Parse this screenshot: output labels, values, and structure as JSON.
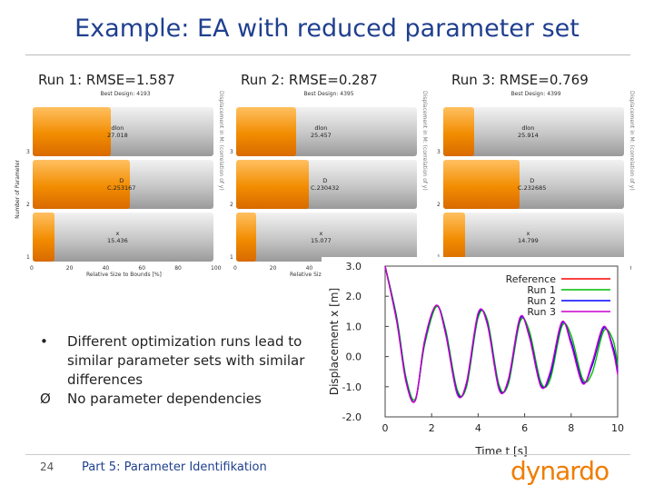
{
  "slide": {
    "title": "Example: EA with reduced parameter set",
    "page_number": "24",
    "footer": "Part 5: Parameter Identifikation",
    "logo_text": "dynardo"
  },
  "runs": [
    {
      "label": "Run 1: RMSE=1.587",
      "best_design": "Best Design: 4193",
      "side_text": "Displacement in M: (correlation of y)",
      "bars": [
        {
          "param": "3",
          "name": "dlon",
          "value": "27.018",
          "fill_pct": 43
        },
        {
          "param": "2",
          "name": "D",
          "value": "C.253167",
          "fill_pct": 54
        },
        {
          "param": "1",
          "name": "x",
          "value": "15.436",
          "fill_pct": 12
        }
      ]
    },
    {
      "label": "Run 2: RMSE=0.287",
      "best_design": "Best Design: 4395",
      "side_text": "Displacement in M: (correlation of y)",
      "bars": [
        {
          "param": "3",
          "name": "dlon",
          "value": "25.457",
          "fill_pct": 33
        },
        {
          "param": "2",
          "name": "D",
          "value": "C.230432",
          "fill_pct": 40
        },
        {
          "param": "1",
          "name": "x",
          "value": "15.077",
          "fill_pct": 11
        }
      ]
    },
    {
      "label": "Run 3: RMSE=0.769",
      "best_design": "Best Design: 4399",
      "side_text": "Displacement in M: (correlation of y)",
      "bars": [
        {
          "param": "3",
          "name": "dlon",
          "value": "25.914",
          "fill_pct": 17
        },
        {
          "param": "2",
          "name": "D",
          "value": "C.232685",
          "fill_pct": 42
        },
        {
          "param": "1",
          "name": "x",
          "value": "14.799",
          "fill_pct": 12
        }
      ]
    }
  ],
  "bar_axis": {
    "ylabel": "Number of Parameter",
    "xlabel": "Relative Size to Bounds [%]",
    "xticks": [
      "0",
      "20",
      "40",
      "60",
      "80",
      "100"
    ]
  },
  "bullets": [
    {
      "mark": "•",
      "text": "Different optimization runs lead to similar parameter sets with similar differences"
    },
    {
      "mark": "Ø",
      "text": "No parameter dependencies"
    }
  ],
  "colors": {
    "title": "#1f3f8f",
    "bar_orange": "#f28c00",
    "reference": "#ff0000",
    "run1": "#00bb00",
    "run2": "#0000ff",
    "run3": "#cc00cc",
    "logo": "#ef7d00"
  },
  "chart_data": {
    "type": "line",
    "xlabel": "Time t [s]",
    "ylabel": "Displacement x [m]",
    "xlim": [
      0,
      10
    ],
    "ylim": [
      -2.0,
      3.0
    ],
    "xticks": [
      "0",
      "2",
      "4",
      "6",
      "8",
      "10"
    ],
    "yticks": [
      "3.0",
      "2.0",
      "1.0",
      "0.0",
      "-1.0",
      "-2.0"
    ],
    "legend_position": "top-right",
    "series": [
      {
        "name": "Reference",
        "color": "#ff0000",
        "x": [
          0,
          0.5,
          0.9,
          1.3,
          1.7,
          2.2,
          2.6,
          3.1,
          3.5,
          4.0,
          4.4,
          4.9,
          5.3,
          5.8,
          6.2,
          6.7,
          7.1,
          7.6,
          8.0,
          8.5,
          8.9,
          9.4,
          9.8,
          10.0
        ],
        "y": [
          3.0,
          1.2,
          -0.8,
          -1.45,
          0.5,
          1.7,
          0.8,
          -1.2,
          -0.9,
          1.4,
          1.1,
          -1.05,
          -0.8,
          1.25,
          0.7,
          -0.95,
          -0.6,
          1.1,
          0.5,
          -0.85,
          -0.3,
          0.95,
          0.3,
          -0.5
        ]
      },
      {
        "name": "Run 1",
        "color": "#00bb00",
        "x": [
          0,
          0.5,
          0.9,
          1.3,
          1.7,
          2.2,
          2.6,
          3.1,
          3.5,
          4.0,
          4.4,
          4.9,
          5.3,
          5.8,
          6.2,
          6.7,
          7.1,
          7.6,
          8.0,
          8.5,
          8.9,
          9.4,
          9.8,
          10.0
        ],
        "y": [
          3.0,
          1.3,
          -0.7,
          -1.4,
          0.4,
          1.65,
          0.9,
          -1.1,
          -1.0,
          1.3,
          1.2,
          -0.95,
          -0.9,
          1.15,
          0.85,
          -0.85,
          -0.75,
          1.0,
          0.7,
          -0.75,
          -0.55,
          0.85,
          0.55,
          -0.3
        ]
      },
      {
        "name": "Run 2",
        "color": "#0000ff",
        "x": [
          0,
          0.5,
          0.9,
          1.3,
          1.7,
          2.2,
          2.6,
          3.1,
          3.5,
          4.0,
          4.4,
          4.9,
          5.3,
          5.8,
          6.2,
          6.7,
          7.1,
          7.6,
          8.0,
          8.5,
          8.9,
          9.4,
          9.8,
          10.0
        ],
        "y": [
          3.0,
          1.2,
          -0.8,
          -1.45,
          0.5,
          1.7,
          0.8,
          -1.2,
          -0.9,
          1.4,
          1.1,
          -1.05,
          -0.8,
          1.25,
          0.7,
          -0.95,
          -0.6,
          1.1,
          0.5,
          -0.85,
          -0.3,
          0.95,
          0.3,
          -0.5
        ]
      },
      {
        "name": "Run 3",
        "color": "#cc00cc",
        "x": [
          0,
          0.5,
          0.9,
          1.3,
          1.7,
          2.2,
          2.6,
          3.1,
          3.5,
          4.0,
          4.4,
          4.9,
          5.3,
          5.8,
          6.2,
          6.7,
          7.1,
          7.6,
          8.0,
          8.5,
          8.9,
          9.4,
          9.8,
          10.0
        ],
        "y": [
          3.0,
          1.15,
          -0.85,
          -1.45,
          0.55,
          1.7,
          0.75,
          -1.25,
          -0.85,
          1.45,
          1.05,
          -1.1,
          -0.75,
          1.3,
          0.65,
          -1.0,
          -0.5,
          1.15,
          0.4,
          -0.9,
          -0.2,
          1.0,
          0.2,
          -0.6
        ]
      }
    ]
  }
}
